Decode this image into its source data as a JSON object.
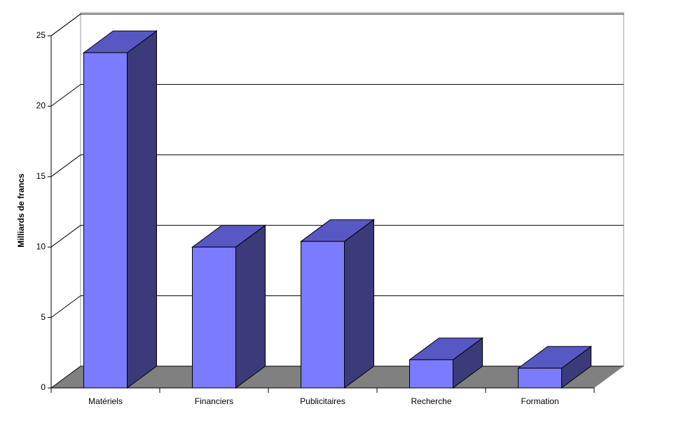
{
  "chart_data": {
    "type": "bar3d",
    "y_label": "Milliards de francs",
    "categories": [
      "Matériels",
      "Financiers",
      "Publicitaires",
      "Recherche",
      "Formation"
    ],
    "values": [
      23.8,
      10,
      10.4,
      2,
      1.4
    ],
    "color": "#7b7bff",
    "top_color": "#5858c4",
    "side_color": "#3b3b7a",
    "ylim": [
      0,
      25
    ],
    "yticks": [
      0,
      5,
      10,
      15,
      20,
      25
    ],
    "grid": true
  }
}
